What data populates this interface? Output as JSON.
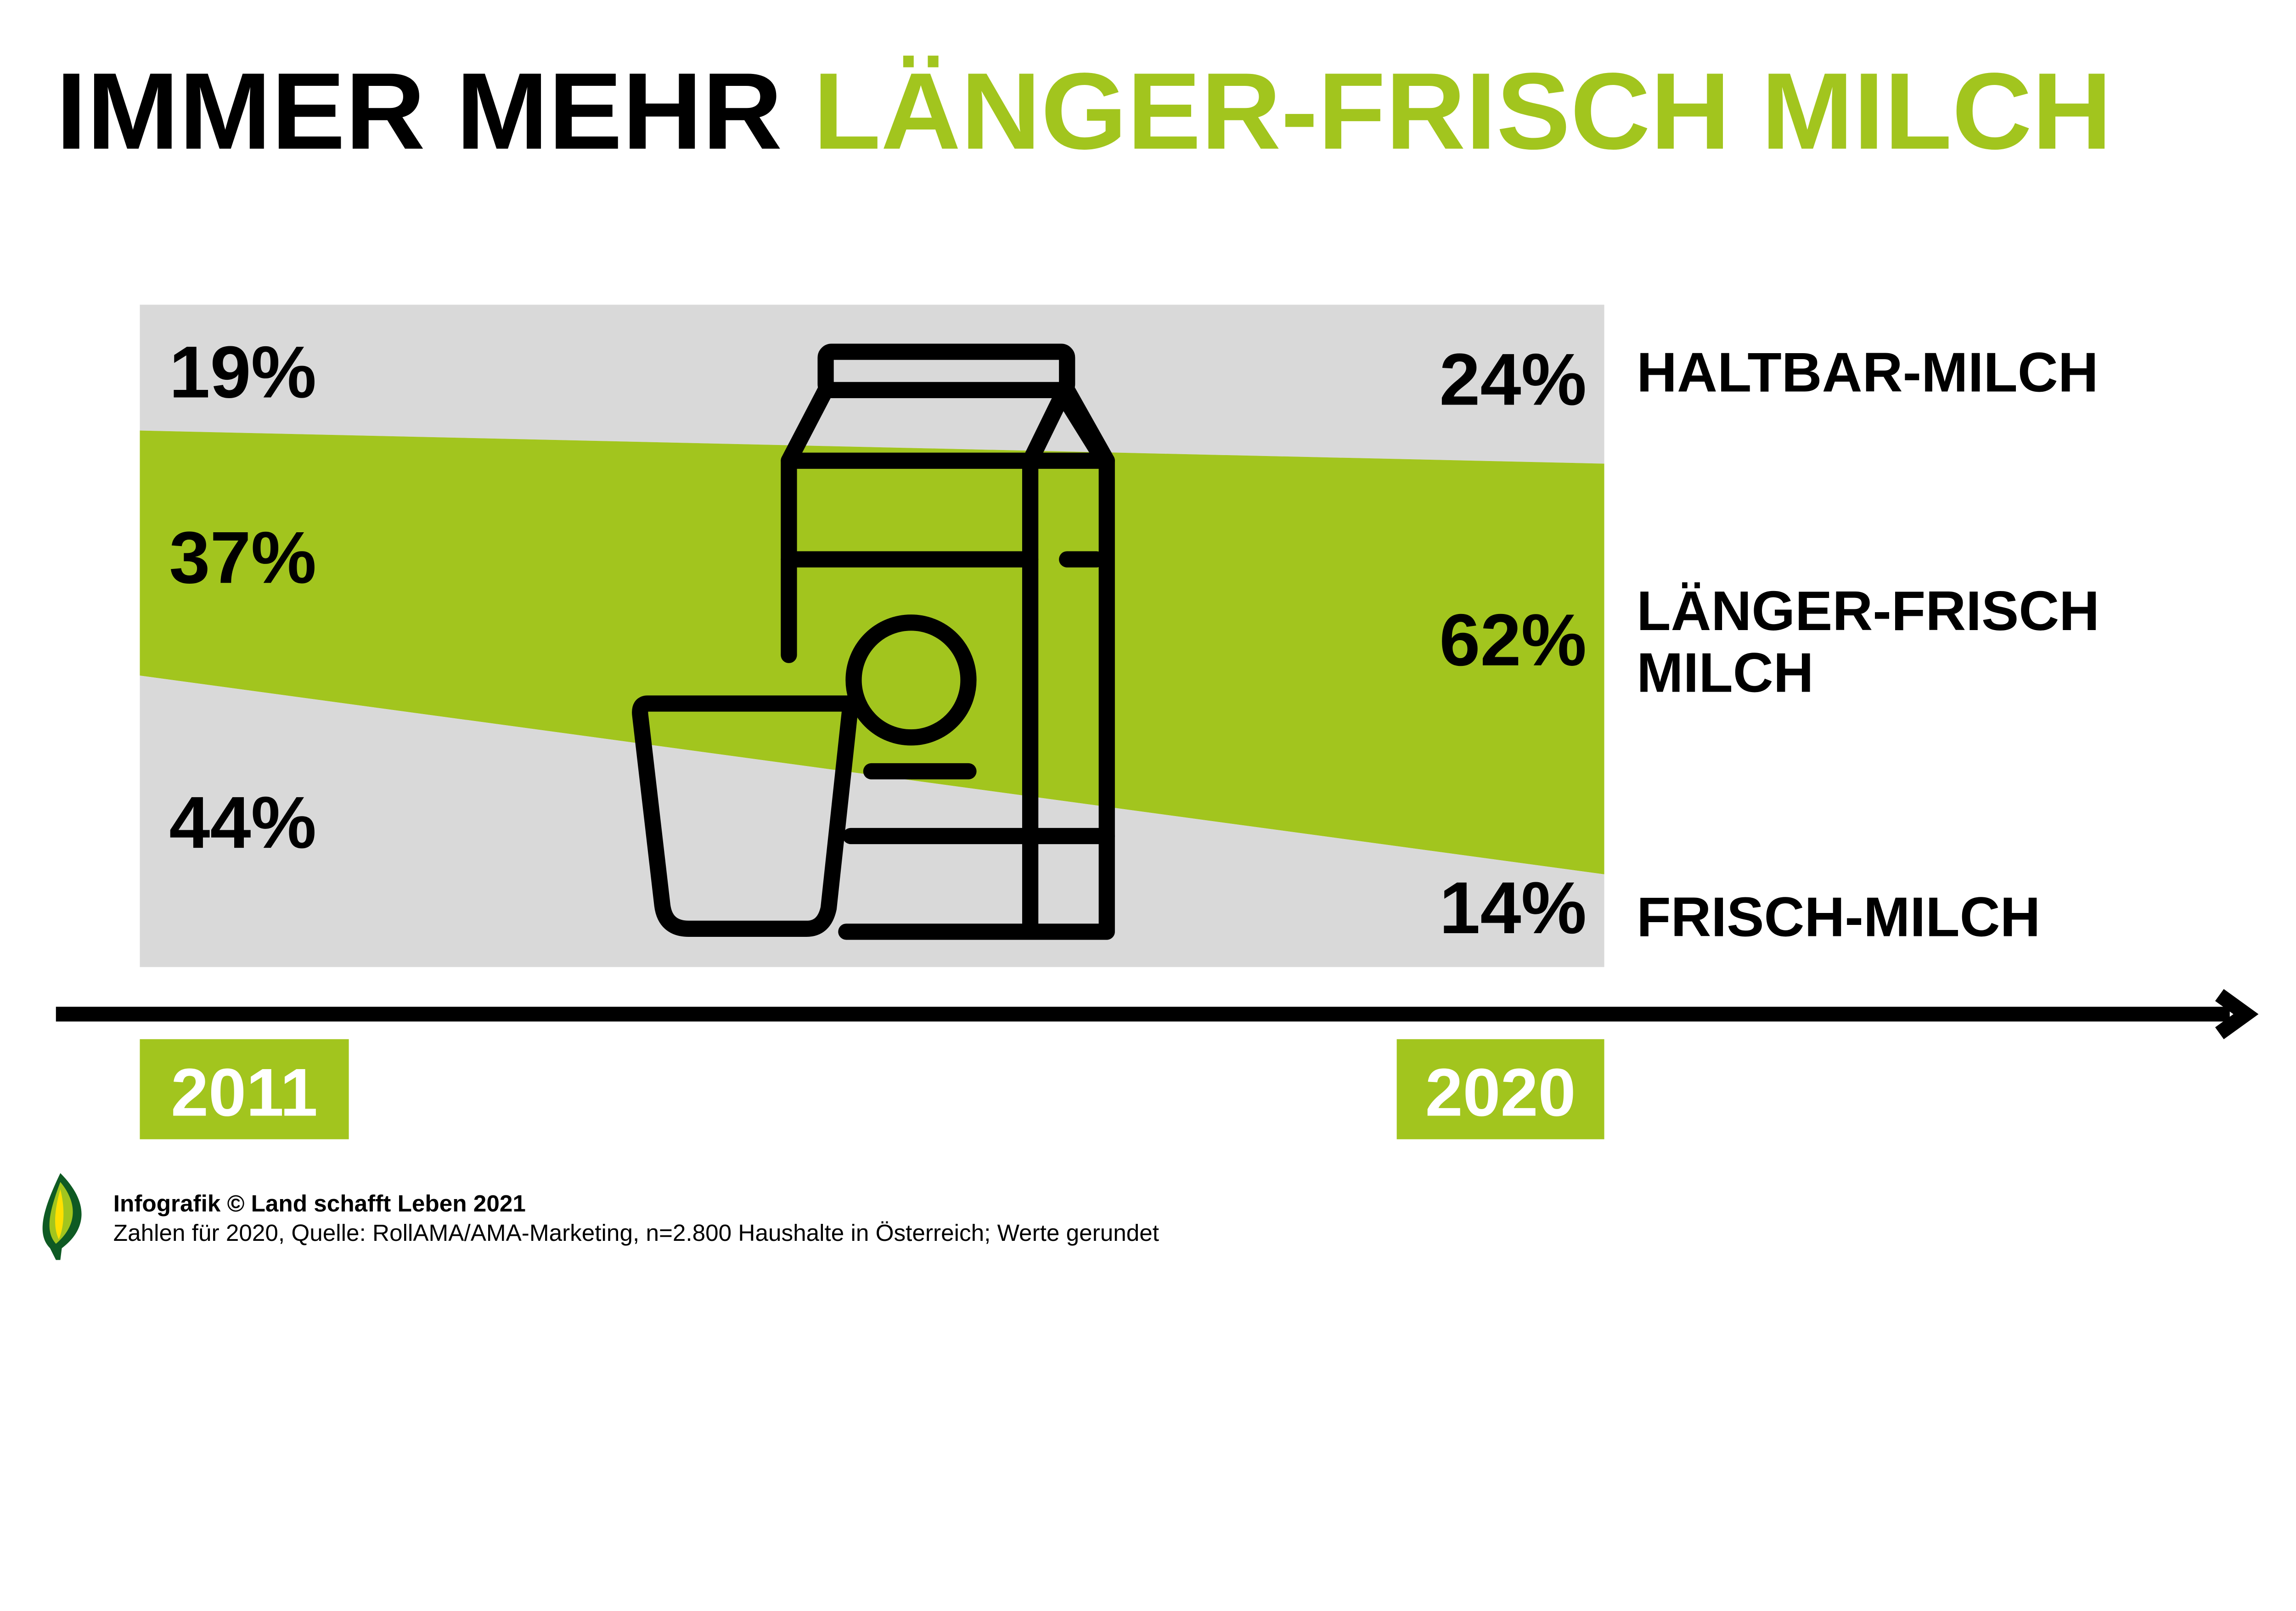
{
  "title": {
    "part1": "IMMER MEHR ",
    "part2": "LÄNGER-FRISCH MILCH"
  },
  "colors": {
    "accent": "#a2c51e",
    "background_band": "#d9d9d9",
    "text": "#000000"
  },
  "chart_data": {
    "type": "area",
    "stacked": true,
    "normalized_percent": true,
    "categories": [
      "2011",
      "2020"
    ],
    "series": [
      {
        "name": "HALTBAR-MILCH",
        "values": [
          19,
          24
        ],
        "labels": [
          "19%",
          "24%"
        ],
        "color": "#d9d9d9"
      },
      {
        "name": "LÄNGER-FRISCH MILCH",
        "name_lines": [
          "LÄNGER-FRISCH",
          "MILCH"
        ],
        "values": [
          37,
          62
        ],
        "labels": [
          "37%",
          "62%"
        ],
        "color": "#a2c51e"
      },
      {
        "name": "FRISCH-MILCH",
        "values": [
          44,
          14
        ],
        "labels": [
          "44%",
          "14%"
        ],
        "color": "#d9d9d9"
      }
    ],
    "ylim": [
      0,
      100
    ],
    "legend_placement": "right",
    "grid": false,
    "icon": "milk-carton-and-glass-icon"
  },
  "footer": {
    "credit": "Infografik © Land schafft Leben 2021",
    "source": "Zahlen für 2020, Quelle: RollAMA/AMA-Marketing, n=2.800 Haushalte in Österreich; Werte gerundet",
    "logo": "leaf-logo-icon"
  }
}
